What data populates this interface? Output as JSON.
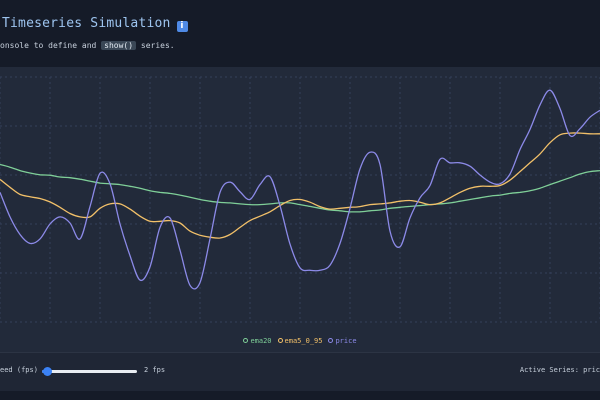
{
  "header": {
    "title": "Timeseries Simulation",
    "info_icon": "info-icon",
    "subtitle_prefix": "onsole to define and",
    "subtitle_code": "show()",
    "subtitle_suffix": "series."
  },
  "colors": {
    "background": "#151b28",
    "panel": "#222a3a",
    "ema20": "#7fcf98",
    "ema5_0_95": "#f2c069",
    "price": "#8c8ae8",
    "slider": "#3b82f6"
  },
  "chart_data": {
    "type": "line",
    "grid": true,
    "legend_position": "bottom-center",
    "x": [
      0,
      1,
      2,
      3,
      4,
      5,
      6,
      7,
      8,
      9,
      10,
      11,
      12,
      13,
      14,
      15,
      16,
      17,
      18,
      19,
      20,
      21,
      22,
      23,
      24,
      25,
      26,
      27,
      28,
      29,
      30,
      31,
      32,
      33,
      34,
      35,
      36,
      37,
      38,
      39,
      40,
      41,
      42,
      43,
      44,
      45,
      46,
      47,
      48,
      49,
      50,
      51,
      52,
      53,
      54,
      55,
      56,
      57,
      58,
      59,
      60
    ],
    "ylim": [
      0,
      100
    ],
    "series": [
      {
        "name": "ema20",
        "color": "#7fcf98",
        "values": [
          64.3,
          63.2,
          61.8,
          60.8,
          60.1,
          59.9,
          59.2,
          58.9,
          58.3,
          57.5,
          56.7,
          56.4,
          56.1,
          55.4,
          54.6,
          53.6,
          52.9,
          52.5,
          51.8,
          50.9,
          50.0,
          49.3,
          48.8,
          48.6,
          48.2,
          47.9,
          47.9,
          48.2,
          48.6,
          48.6,
          47.9,
          47.2,
          46.4,
          45.7,
          45.4,
          45.0,
          45.0,
          45.4,
          45.7,
          46.4,
          46.8,
          47.2,
          47.5,
          47.9,
          48.2,
          48.6,
          49.3,
          50.0,
          50.7,
          51.4,
          51.8,
          52.5,
          52.9,
          53.6,
          54.6,
          56.1,
          57.5,
          58.9,
          60.4,
          61.4,
          61.8
        ]
      },
      {
        "name": "ema5_0_95",
        "color": "#f2c069",
        "values": [
          58.2,
          55.0,
          52.1,
          51.1,
          50.4,
          49.0,
          46.8,
          44.3,
          42.9,
          42.9,
          46.4,
          48.2,
          48.2,
          46.1,
          43.2,
          41.1,
          41.1,
          41.4,
          40.4,
          37.1,
          35.4,
          34.6,
          34.3,
          35.7,
          38.6,
          41.4,
          43.2,
          45.0,
          47.5,
          49.6,
          50.0,
          48.9,
          47.1,
          46.1,
          46.4,
          46.8,
          47.1,
          47.9,
          48.2,
          48.6,
          49.3,
          49.6,
          48.9,
          47.9,
          48.6,
          50.7,
          52.9,
          54.6,
          55.4,
          55.4,
          55.7,
          57.9,
          61.4,
          65.0,
          68.6,
          73.2,
          76.4,
          77.1,
          77.1,
          76.8,
          76.8
        ]
      },
      {
        "name": "price",
        "color": "#8c8ae8",
        "values": [
          52.9,
          42.9,
          35.7,
          32.1,
          33.9,
          40.0,
          42.9,
          40.4,
          33.9,
          47.1,
          60.7,
          56.4,
          40.0,
          27.1,
          17.1,
          22.5,
          38.6,
          42.5,
          29.3,
          15.0,
          16.1,
          33.9,
          52.9,
          57.1,
          53.2,
          50.0,
          56.1,
          59.3,
          47.5,
          31.8,
          22.1,
          21.1,
          21.1,
          23.2,
          32.1,
          46.4,
          62.5,
          69.3,
          64.3,
          37.1,
          30.7,
          42.5,
          50.7,
          55.7,
          66.4,
          65.0,
          65.0,
          63.6,
          60.0,
          57.1,
          56.4,
          60.4,
          70.4,
          78.6,
          88.6,
          94.6,
          87.1,
          76.1,
          78.9,
          83.6,
          86.4
        ]
      }
    ]
  },
  "controls": {
    "speed_label": "eed (fps)",
    "speed_value": 2,
    "speed_min": 1,
    "speed_max": 60,
    "fps_value_text": "2 fps",
    "active_series_text": "Active Series: pric"
  }
}
